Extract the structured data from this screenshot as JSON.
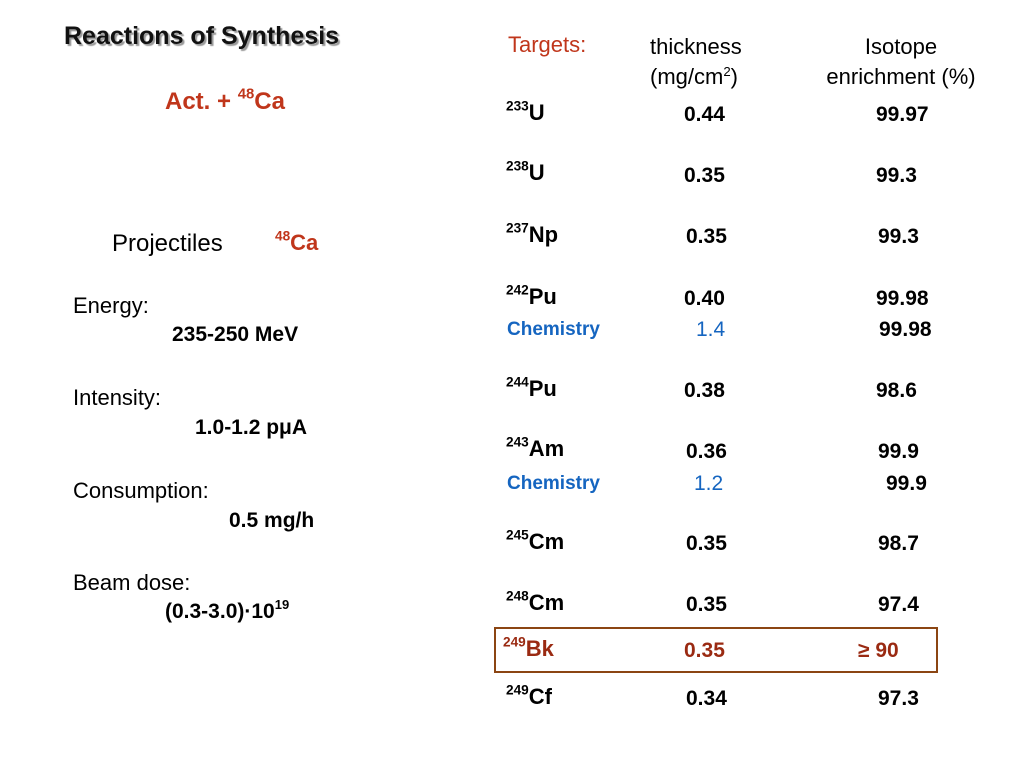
{
  "title": "Reactions of Synthesis",
  "reaction": {
    "prefix": "Act. + ",
    "mass": "48",
    "symbol": "Ca"
  },
  "projectiles": {
    "label": "Projectiles",
    "mass": "48",
    "symbol": "Ca"
  },
  "params": {
    "energy_label": "Energy:",
    "energy_value": "235-250 MeV",
    "intensity_label": "Intensity:",
    "intensity_value": "1.0-1.2 pμA",
    "consumption_label": "Consumption:",
    "consumption_value": "0.5 mg/h",
    "dose_label": "Beam dose:",
    "dose_value": "(0.3-3.0)·10",
    "dose_exp": "19"
  },
  "table": {
    "targets_label": "Targets:",
    "thickness_line1": "thickness",
    "thickness_line2": "(mg/cm",
    "thickness_sup": "2",
    "thickness_close": ")",
    "isotope_line1": "Isotope",
    "isotope_line2": "enrichment (%)",
    "rows": [
      {
        "mass": "233",
        "symbol": "U",
        "thickness": "0.44",
        "enrichment": "99.97"
      },
      {
        "mass": "238",
        "symbol": "U",
        "thickness": "0.35",
        "enrichment": "99.3"
      },
      {
        "mass": "237",
        "symbol": "Np",
        "thickness": "0.35",
        "enrichment": "99.3"
      },
      {
        "mass": "242",
        "symbol": "Pu",
        "thickness": "0.40",
        "enrichment": "99.98"
      },
      {
        "label": "Chemistry",
        "thickness": "1.4",
        "enrichment": "99.98"
      },
      {
        "mass": "244",
        "symbol": "Pu",
        "thickness": "0.38",
        "enrichment": "98.6"
      },
      {
        "mass": "243",
        "symbol": "Am",
        "thickness": "0.36",
        "enrichment": "99.9"
      },
      {
        "label": "Chemistry",
        "thickness": "1.2",
        "enrichment": "99.9"
      },
      {
        "mass": "245",
        "symbol": "Cm",
        "thickness": "0.35",
        "enrichment": "98.7"
      },
      {
        "mass": "248",
        "symbol": "Cm",
        "thickness": "0.35",
        "enrichment": "97.4"
      },
      {
        "mass": "249",
        "symbol": "Bk",
        "thickness": "0.35",
        "enrichment": "≥ 90"
      },
      {
        "mass": "249",
        "symbol": "Cf",
        "thickness": "0.34",
        "enrichment": "97.3"
      }
    ]
  },
  "colors": {
    "accent": "#c0361b",
    "chemistry": "#1565c0",
    "highlight_border": "#8b4513"
  }
}
